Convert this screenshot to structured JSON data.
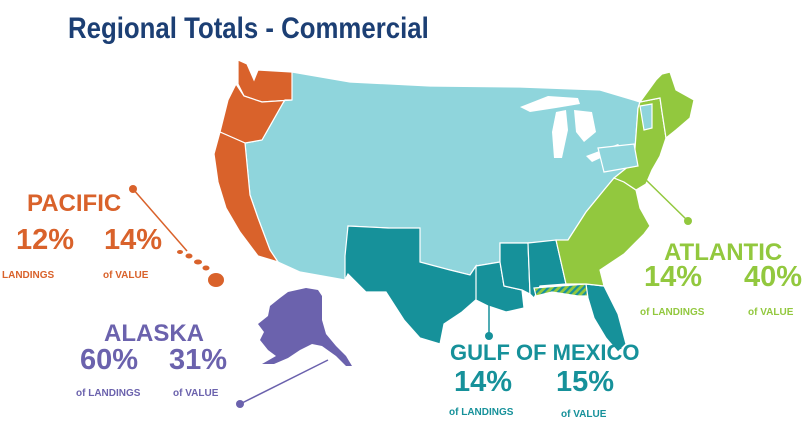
{
  "title": "Regional Totals - Commercial",
  "colors": {
    "pacific": "#d9622b",
    "alaska": "#6b62ad",
    "gulf": "#16919a",
    "atlantic": "#92c83e",
    "interior": "#8fd5dc",
    "title": "#1c3f74"
  },
  "regions": {
    "pacific": {
      "name": "PACIFIC",
      "landings_pct": "12%",
      "landings_label": "LANDINGS",
      "value_pct": "14%",
      "value_label": "of VALUE"
    },
    "alaska": {
      "name": "ALASKA",
      "landings_pct": "60%",
      "landings_label": "of LANDINGS",
      "value_pct": "31%",
      "value_label": "of VALUE"
    },
    "gulf": {
      "name": "GULF OF MEXICO",
      "landings_pct": "14%",
      "landings_label": "of LANDINGS",
      "value_pct": "15%",
      "value_label": "of VALUE"
    },
    "atlantic": {
      "name": "ATLANTIC",
      "landings_pct": "14%",
      "landings_label": "of LANDINGS",
      "value_pct": "40%",
      "value_label": "of VALUE"
    }
  }
}
